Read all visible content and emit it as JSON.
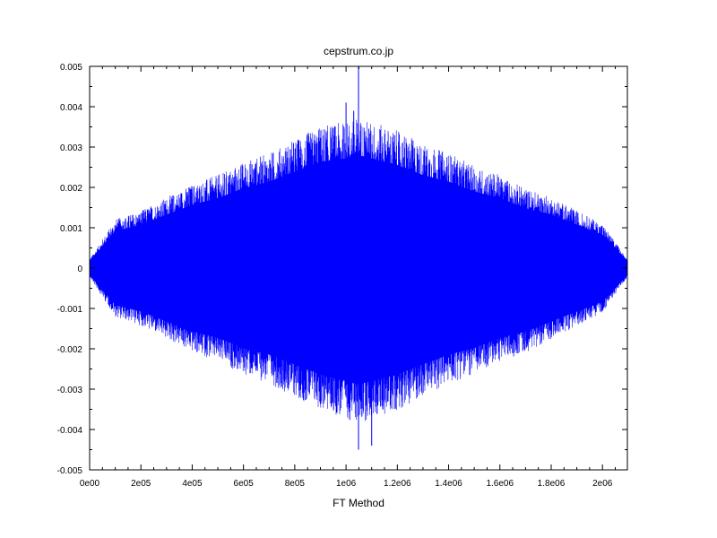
{
  "chart_data": {
    "type": "line",
    "title": "cepstrum.co.jp",
    "xlabel": "FT Method",
    "ylabel": "",
    "xlim": [
      0,
      2097152
    ],
    "ylim": [
      -0.005,
      0.005
    ],
    "x_tick_values": [
      0,
      200000,
      400000,
      600000,
      800000,
      1000000,
      1200000,
      1400000,
      1600000,
      1800000,
      2000000
    ],
    "x_tick_labels": [
      "0e00",
      "2e05",
      "4e05",
      "6e05",
      "8e05",
      "1e06",
      "1.2e06",
      "1.4e06",
      "1.6e06",
      "1.8e06",
      "2e06"
    ],
    "y_tick_values": [
      0.005,
      0.004,
      0.003,
      0.002,
      0.001,
      0,
      -0.001,
      -0.002,
      -0.003,
      -0.004,
      -0.005
    ],
    "y_tick_labels": [
      "0.005",
      "0.004",
      "0.003",
      "0.002",
      "0.001",
      "0",
      "-0.001",
      "-0.002",
      "-0.003",
      "-0.004",
      "-0.005"
    ],
    "grid": false,
    "series": [
      {
        "color": "#0000ff",
        "envelope": {
          "x": [
            0,
            100000,
            200000,
            300000,
            400000,
            500000,
            600000,
            700000,
            800000,
            900000,
            1000000,
            1048576,
            1100000,
            1200000,
            1300000,
            1400000,
            1500000,
            1600000,
            1700000,
            1800000,
            1900000,
            2000000,
            2097152
          ],
          "upper": [
            0.0002,
            0.0011,
            0.0013,
            0.0016,
            0.0019,
            0.0021,
            0.0024,
            0.0026,
            0.0029,
            0.0032,
            0.0033,
            0.0034,
            0.0033,
            0.0031,
            0.0028,
            0.0026,
            0.0023,
            0.0021,
            0.0018,
            0.0016,
            0.0013,
            0.001,
            0.0002
          ],
          "lower": [
            -0.0002,
            -0.0011,
            -0.0013,
            -0.0016,
            -0.0019,
            -0.0021,
            -0.0024,
            -0.0026,
            -0.0029,
            -0.0032,
            -0.0034,
            -0.0035,
            -0.0034,
            -0.0032,
            -0.0029,
            -0.0026,
            -0.0024,
            -0.0021,
            -0.0019,
            -0.0016,
            -0.0013,
            -0.001,
            -0.0002
          ]
        },
        "peaks": [
          {
            "x": 1048576,
            "y": 0.005
          },
          {
            "x": 1048576,
            "y": -0.0045
          },
          {
            "x": 1030000,
            "y": 0.0039
          },
          {
            "x": 1000000,
            "y": 0.0041
          },
          {
            "x": 1100000,
            "y": -0.0044
          }
        ]
      }
    ]
  }
}
